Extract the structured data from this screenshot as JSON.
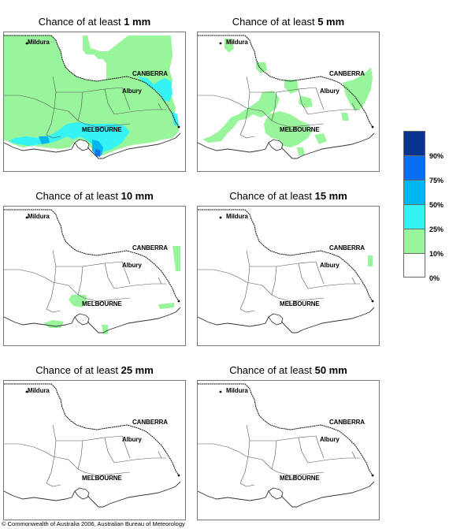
{
  "panels": [
    {
      "title_prefix": "Chance of at least",
      "amount": "1 mm",
      "fill": "p1"
    },
    {
      "title_prefix": "Chance of at least",
      "amount": "5 mm",
      "fill": "p5"
    },
    {
      "title_prefix": "Chance of at least",
      "amount": "10 mm",
      "fill": "p10"
    },
    {
      "title_prefix": "Chance of at least",
      "amount": "15 mm",
      "fill": "p15"
    },
    {
      "title_prefix": "Chance of at least",
      "amount": "25 mm",
      "fill": "p25"
    },
    {
      "title_prefix": "Chance of at least",
      "amount": "50 mm",
      "fill": "p50"
    }
  ],
  "places": {
    "mildura": "Mildura",
    "canberra": "CANBERRA",
    "albury": "Albury",
    "melbourne": "MELBOURNE"
  },
  "legend": {
    "bands": [
      {
        "color": "#08338f"
      },
      {
        "color": "#0a6df0"
      },
      {
        "color": "#00b6f0"
      },
      {
        "color": "#36f3f3"
      },
      {
        "color": "#99f59b"
      },
      {
        "color": "#ffffff"
      }
    ],
    "labels": [
      "90%",
      "75%",
      "50%",
      "25%",
      "10%",
      "0%"
    ]
  },
  "copyright": "© Commonwealth of Australia 2006, Australian Bureau of Meteorology"
}
